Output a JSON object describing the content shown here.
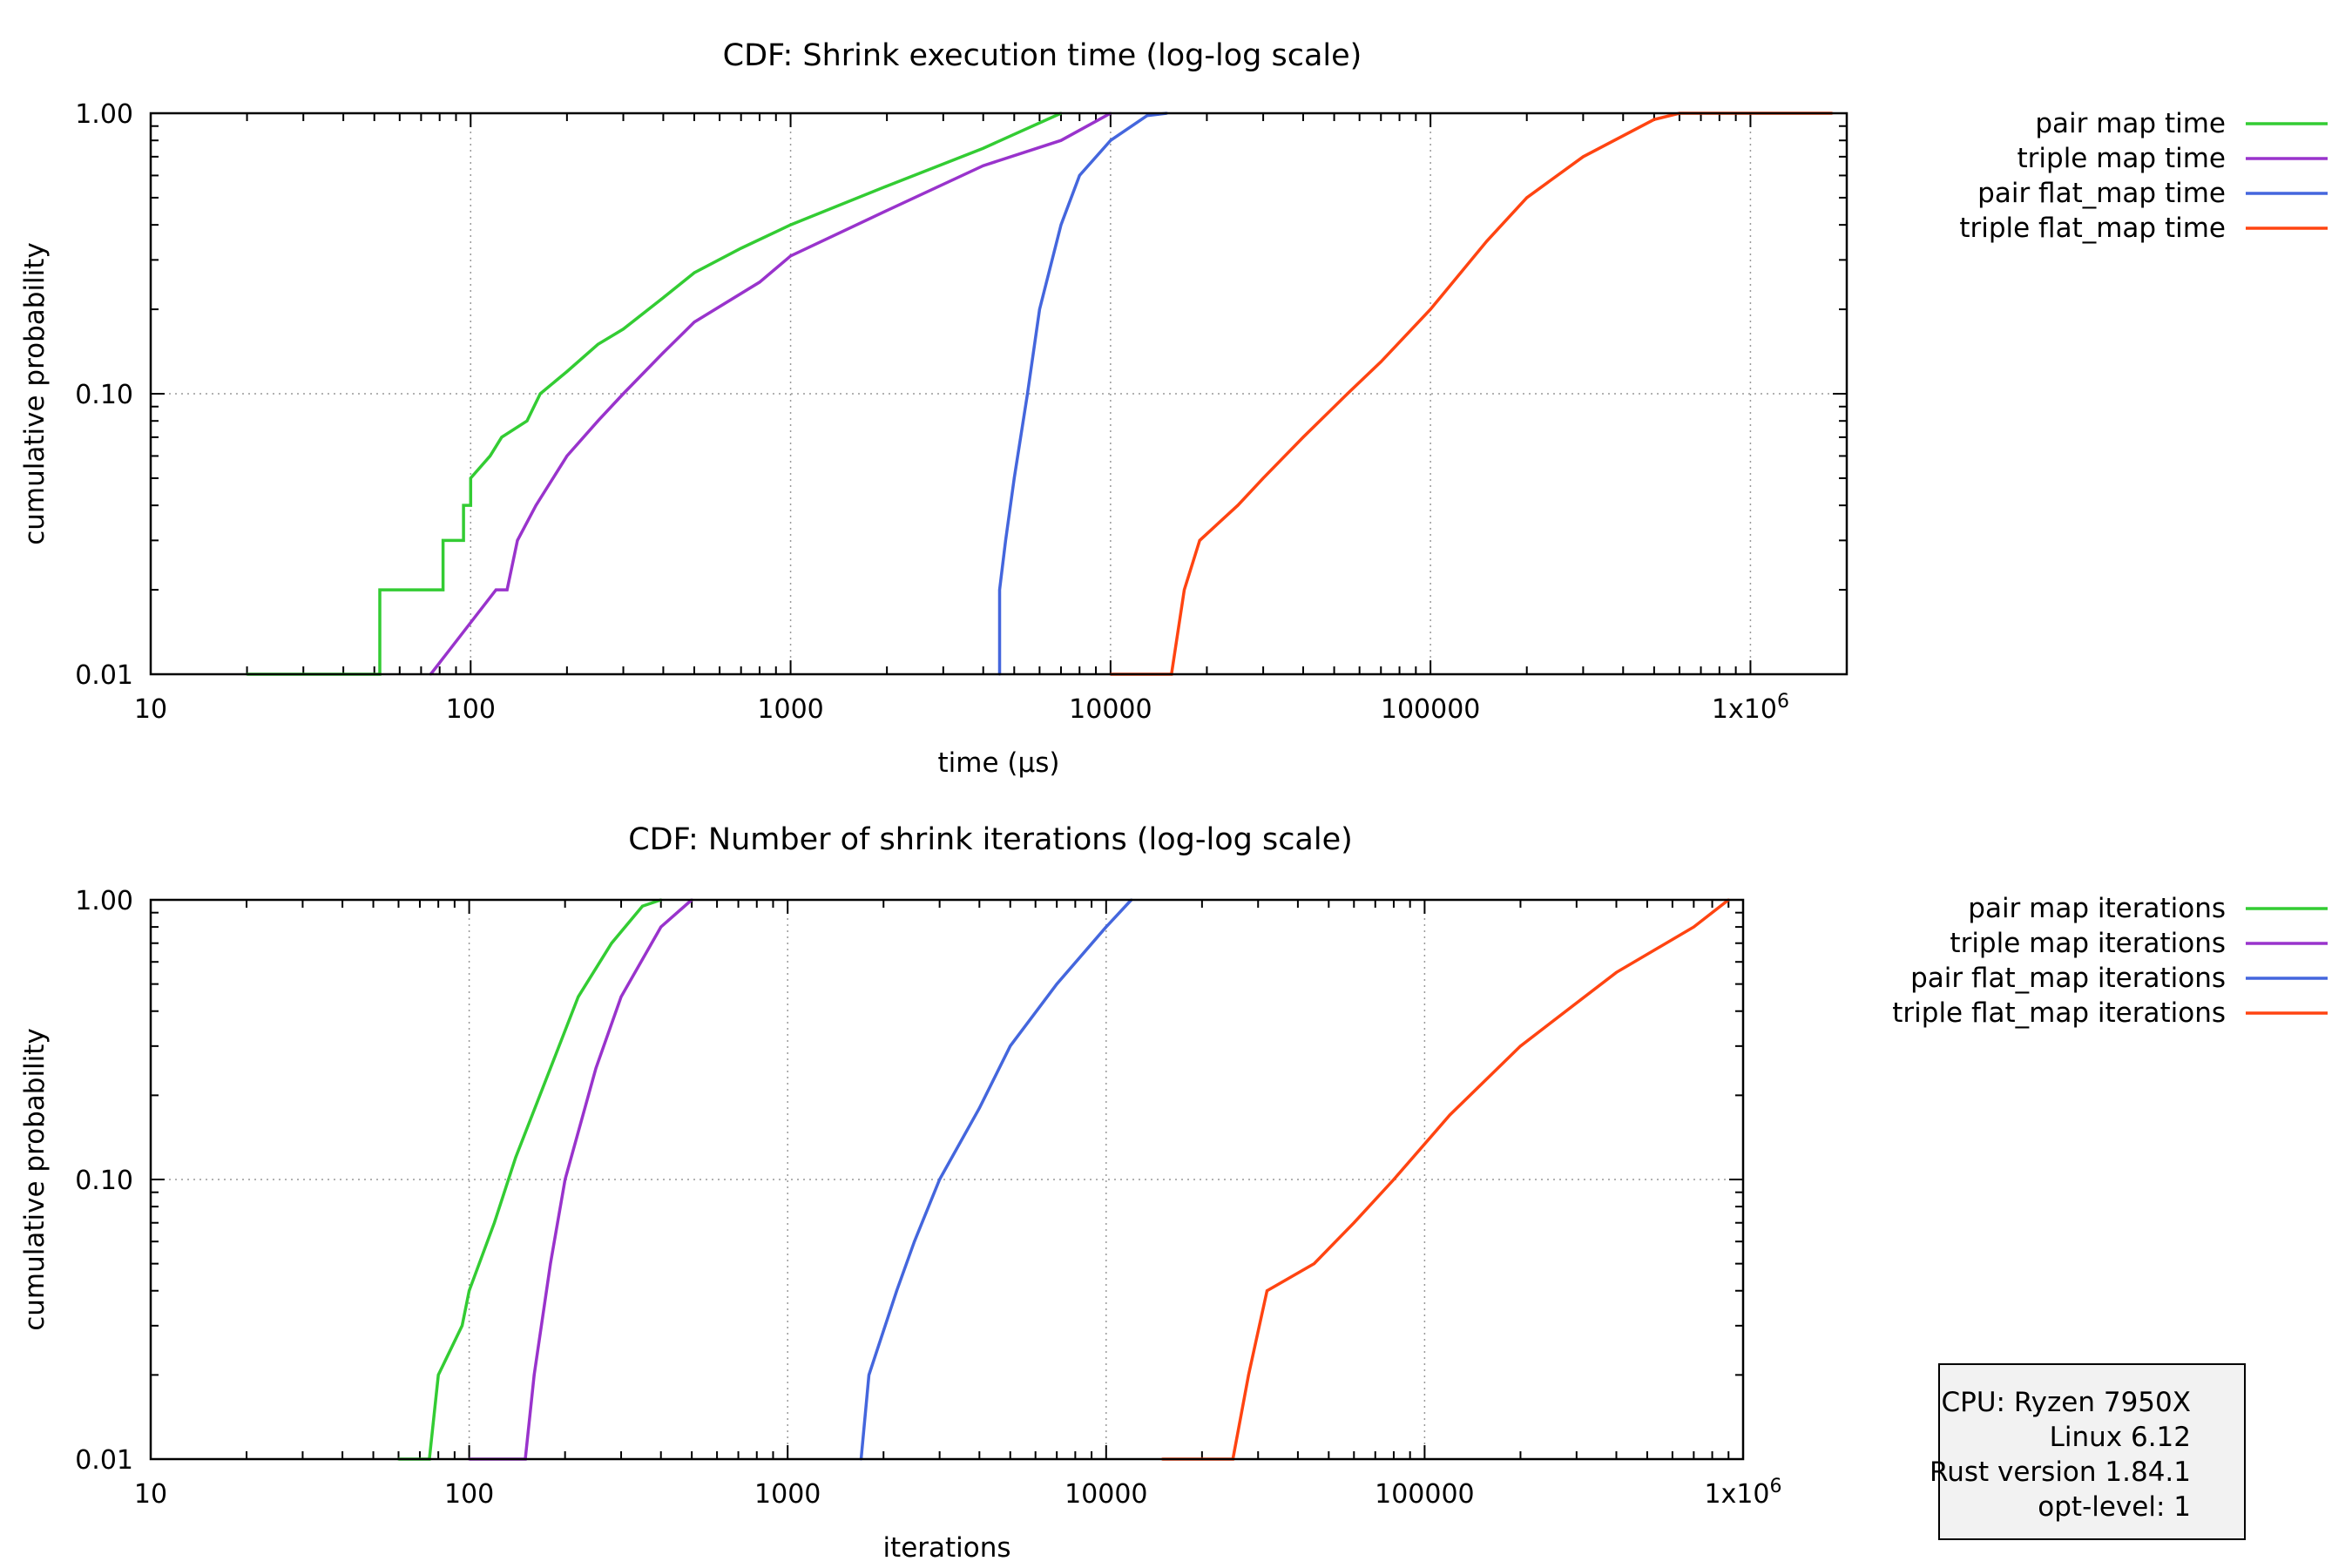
{
  "chart_data": [
    {
      "type": "line",
      "title": "CDF: Shrink execution time (log-log scale)",
      "xlabel": "time (µs)",
      "ylabel": "cumulative probability",
      "xscale": "log",
      "yscale": "log",
      "xlim": [
        10,
        2000000
      ],
      "ylim": [
        0.01,
        1
      ],
      "xticks": [
        {
          "v": 10,
          "label": "10"
        },
        {
          "v": 100,
          "label": "100"
        },
        {
          "v": 1000,
          "label": "1000"
        },
        {
          "v": 10000,
          "label": "10000"
        },
        {
          "v": 100000,
          "label": "100000"
        },
        {
          "v": 1000000,
          "label": "1x10",
          "sup": "6"
        }
      ],
      "yticks": [
        {
          "v": 0.01,
          "label": "0.01"
        },
        {
          "v": 0.1,
          "label": "0.10"
        },
        {
          "v": 1,
          "label": "1.00"
        }
      ],
      "grid": true,
      "legend_position": "outside-right",
      "series": [
        {
          "name": "pair map time",
          "color": "#33cc33",
          "x": [
            20,
            52,
            52,
            82,
            82,
            95,
            95,
            100,
            100,
            115,
            125,
            150,
            165,
            200,
            250,
            300,
            400,
            500,
            700,
            1000,
            2000,
            4000,
            7000
          ],
          "y": [
            0.01,
            0.01,
            0.02,
            0.02,
            0.03,
            0.03,
            0.04,
            0.04,
            0.05,
            0.06,
            0.07,
            0.08,
            0.1,
            0.12,
            0.15,
            0.17,
            0.22,
            0.27,
            0.33,
            0.4,
            0.55,
            0.75,
            1.0
          ]
        },
        {
          "name": "triple map time",
          "color": "#9933cc",
          "x": [
            75,
            120,
            130,
            140,
            160,
            200,
            250,
            300,
            400,
            500,
            800,
            1000,
            2000,
            4000,
            7000,
            10000
          ],
          "y": [
            0.01,
            0.02,
            0.02,
            0.03,
            0.04,
            0.06,
            0.08,
            0.1,
            0.14,
            0.18,
            0.25,
            0.31,
            0.45,
            0.65,
            0.8,
            1.0
          ]
        },
        {
          "name": "pair flat_map time",
          "color": "#4466dd",
          "x": [
            4500,
            4500,
            4700,
            5000,
            5500,
            6000,
            7000,
            8000,
            10000,
            13000,
            15000
          ],
          "y": [
            0.01,
            0.02,
            0.03,
            0.05,
            0.1,
            0.2,
            0.4,
            0.6,
            0.8,
            0.98,
            1.0
          ]
        },
        {
          "name": "triple flat_map time",
          "color": "#ff4411",
          "x": [
            10000,
            15500,
            17000,
            19000,
            19000,
            25000,
            30000,
            40000,
            55000,
            70000,
            100000,
            150000,
            200000,
            300000,
            500000,
            600000,
            1800000
          ],
          "y": [
            0.01,
            0.01,
            0.02,
            0.03,
            0.03,
            0.04,
            0.05,
            0.07,
            0.1,
            0.13,
            0.2,
            0.35,
            0.5,
            0.7,
            0.95,
            1.0,
            1.0
          ]
        }
      ]
    },
    {
      "type": "line",
      "title": "CDF: Number of shrink iterations (log-log scale)",
      "xlabel": "iterations",
      "ylabel": "cumulative probability",
      "xscale": "log",
      "yscale": "log",
      "xlim": [
        10,
        1000000
      ],
      "ylim": [
        0.01,
        1
      ],
      "xticks": [
        {
          "v": 10,
          "label": "10"
        },
        {
          "v": 100,
          "label": "100"
        },
        {
          "v": 1000,
          "label": "1000"
        },
        {
          "v": 10000,
          "label": "10000"
        },
        {
          "v": 100000,
          "label": "100000"
        },
        {
          "v": 1000000,
          "label": "1x10",
          "sup": "6"
        }
      ],
      "yticks": [
        {
          "v": 0.01,
          "label": "0.01"
        },
        {
          "v": 0.1,
          "label": "0.10"
        },
        {
          "v": 1,
          "label": "1.00"
        }
      ],
      "grid": true,
      "legend_position": "outside-right",
      "series": [
        {
          "name": "pair map iterations",
          "color": "#33cc33",
          "x": [
            60,
            75,
            80,
            95,
            100,
            120,
            140,
            180,
            220,
            280,
            350,
            400
          ],
          "y": [
            0.01,
            0.01,
            0.02,
            0.03,
            0.04,
            0.07,
            0.12,
            0.25,
            0.45,
            0.7,
            0.95,
            1.0
          ]
        },
        {
          "name": "triple map iterations",
          "color": "#9933cc",
          "x": [
            100,
            150,
            160,
            180,
            200,
            250,
            300,
            400,
            500
          ],
          "y": [
            0.01,
            0.01,
            0.02,
            0.05,
            0.1,
            0.25,
            0.45,
            0.8,
            1.0
          ]
        },
        {
          "name": "pair flat_map iterations",
          "color": "#4466dd",
          "x": [
            1700,
            1800,
            2200,
            2500,
            3000,
            4000,
            5000,
            7000,
            10000,
            12000
          ],
          "y": [
            0.01,
            0.02,
            0.04,
            0.06,
            0.1,
            0.18,
            0.3,
            0.5,
            0.8,
            1.0
          ]
        },
        {
          "name": "triple flat_map iterations",
          "color": "#ff4411",
          "x": [
            15000,
            25000,
            28000,
            32000,
            45000,
            60000,
            80000,
            120000,
            200000,
            400000,
            700000,
            900000
          ],
          "y": [
            0.01,
            0.01,
            0.02,
            0.04,
            0.05,
            0.07,
            0.1,
            0.17,
            0.3,
            0.55,
            0.8,
            1.0
          ]
        }
      ]
    }
  ],
  "info_box": {
    "lines": [
      "CPU: Ryzen 7950X",
      "Linux 6.12",
      "Rust version 1.84.1",
      "opt-level: 1"
    ],
    "background": "#f2f2f2"
  }
}
